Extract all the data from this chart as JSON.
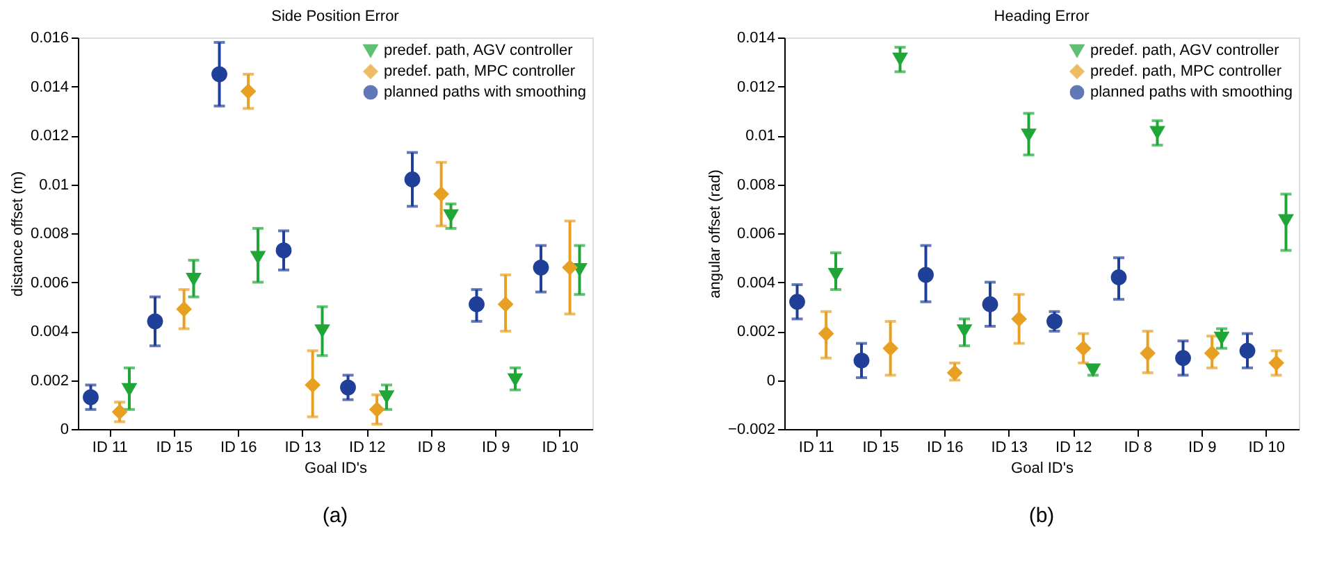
{
  "chart_data": [
    {
      "type": "scatter",
      "title": "Side Position Error",
      "xlabel": "Goal ID's",
      "ylabel": "distance offset (m)",
      "categories": [
        "ID 11",
        "ID 15",
        "ID 16",
        "ID 13",
        "ID 12",
        "ID 8",
        "ID 9",
        "ID 10"
      ],
      "ylim": [
        0,
        0.016
      ],
      "yticks": [
        0,
        0.002,
        0.004,
        0.006,
        0.008,
        0.01,
        0.012,
        0.014,
        0.016
      ],
      "grid": false,
      "legend": "top right",
      "annotations": [
        "(a)"
      ],
      "series": [
        {
          "name": "predef. path, AGV controller",
          "color": "#1fa637",
          "marker": "triangle",
          "values": [
            0.0016,
            0.0061,
            0.007,
            0.004,
            0.0013,
            0.0087,
            0.002,
            0.0065
          ],
          "errors": [
            [
              0.0008,
              0.0025
            ],
            [
              0.0054,
              0.0069
            ],
            [
              0.006,
              0.0082
            ],
            [
              0.003,
              0.005
            ],
            [
              0.0008,
              0.0018
            ],
            [
              0.0082,
              0.0092
            ],
            [
              0.0016,
              0.0025
            ],
            [
              0.0055,
              0.0075
            ]
          ]
        },
        {
          "name": "predef. path, MPC controller",
          "color": "#e8a023",
          "marker": "diamond",
          "values": [
            0.0007,
            0.0049,
            0.0138,
            0.0018,
            0.0008,
            0.0096,
            0.0051,
            0.0066
          ],
          "errors": [
            [
              0.0003,
              0.0011
            ],
            [
              0.0041,
              0.0057
            ],
            [
              0.0131,
              0.0145
            ],
            [
              0.0005,
              0.0032
            ],
            [
              0.0002,
              0.0014
            ],
            [
              0.0083,
              0.0109
            ],
            [
              0.004,
              0.0063
            ],
            [
              0.0047,
              0.0085
            ]
          ]
        },
        {
          "name": "planned paths with smoothing",
          "color": "#1f3f99",
          "marker": "circle",
          "values": [
            0.0013,
            0.0044,
            0.0145,
            0.0073,
            0.0017,
            0.0102,
            0.0051,
            0.0066
          ],
          "errors": [
            [
              0.0008,
              0.0018
            ],
            [
              0.0034,
              0.0054
            ],
            [
              0.0132,
              0.0158
            ],
            [
              0.0065,
              0.0081
            ],
            [
              0.0012,
              0.0022
            ],
            [
              0.0091,
              0.0113
            ],
            [
              0.0044,
              0.0057
            ],
            [
              0.0056,
              0.0075
            ]
          ]
        }
      ]
    },
    {
      "type": "scatter",
      "title": "Heading Error",
      "xlabel": "Goal ID's",
      "ylabel": "angular offset (rad)",
      "categories": [
        "ID 11",
        "ID 15",
        "ID 16",
        "ID 13",
        "ID 12",
        "ID 8",
        "ID 9",
        "ID 10"
      ],
      "ylim": [
        -0.002,
        0.014
      ],
      "yticks": [
        -0.002,
        0,
        0.002,
        0.004,
        0.006,
        0.008,
        0.01,
        0.012,
        0.014
      ],
      "grid": false,
      "legend": "top right",
      "annotations": [
        "(b)"
      ],
      "series": [
        {
          "name": "predef. path, AGV controller",
          "color": "#1fa637",
          "marker": "triangle",
          "values": [
            0.0043,
            0.0131,
            0.002,
            0.01,
            0.0004,
            0.0101,
            0.0017,
            0.0065
          ],
          "errors": [
            [
              0.0037,
              0.0052
            ],
            [
              0.0126,
              0.0136
            ],
            [
              0.0014,
              0.0025
            ],
            [
              0.0092,
              0.0109
            ],
            [
              0.0002,
              0.0006
            ],
            [
              0.0096,
              0.0106
            ],
            [
              0.0013,
              0.0021
            ],
            [
              0.0053,
              0.0076
            ]
          ]
        },
        {
          "name": "predef. path, MPC controller",
          "color": "#e8a023",
          "marker": "diamond",
          "values": [
            0.0019,
            0.0013,
            0.0003,
            0.0025,
            0.0013,
            0.0011,
            0.0011,
            0.0007
          ],
          "errors": [
            [
              0.0009,
              0.0028
            ],
            [
              0.0002,
              0.0024
            ],
            [
              0.0,
              0.0007
            ],
            [
              0.0015,
              0.0035
            ],
            [
              0.0007,
              0.0019
            ],
            [
              0.0003,
              0.002
            ],
            [
              0.0005,
              0.0018
            ],
            [
              0.0002,
              0.0012
            ]
          ]
        },
        {
          "name": "planned paths with smoothing",
          "color": "#1f3f99",
          "marker": "circle",
          "values": [
            0.0032,
            0.0008,
            0.0043,
            0.0031,
            0.0024,
            0.0042,
            0.0009,
            0.0012
          ],
          "errors": [
            [
              0.0025,
              0.0039
            ],
            [
              0.0001,
              0.0015
            ],
            [
              0.0032,
              0.0055
            ],
            [
              0.0022,
              0.004
            ],
            [
              0.002,
              0.0028
            ],
            [
              0.0033,
              0.005
            ],
            [
              0.0002,
              0.0016
            ],
            [
              0.0005,
              0.0019
            ]
          ]
        }
      ]
    }
  ]
}
